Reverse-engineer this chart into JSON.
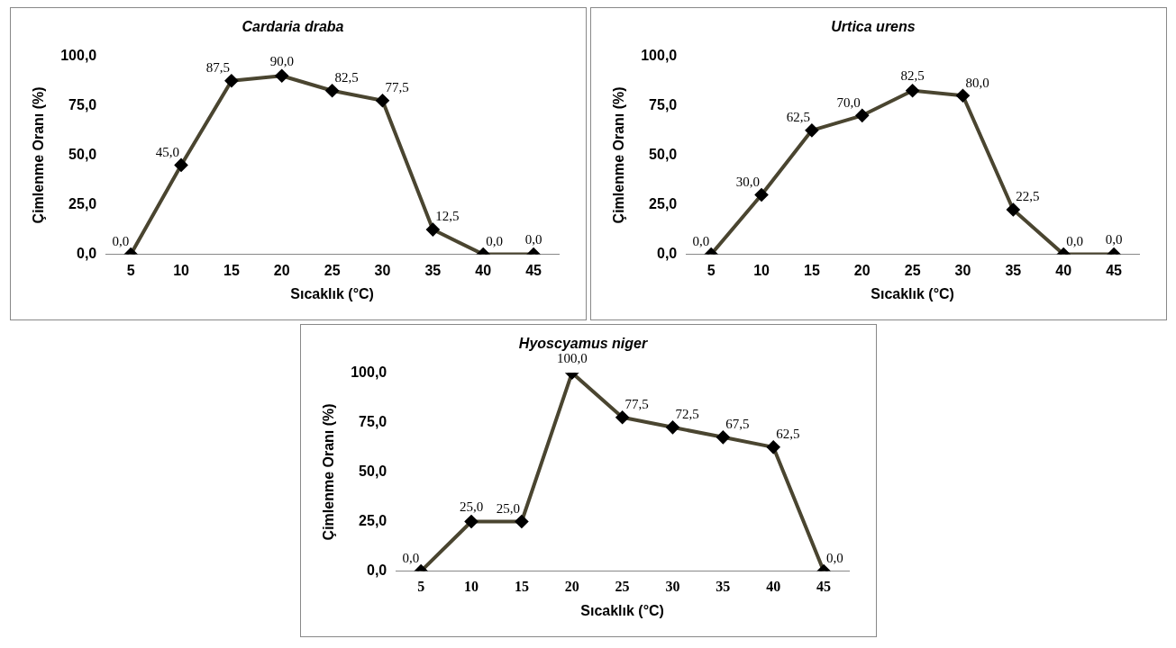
{
  "chart_data": [
    {
      "type": "line",
      "title": "Cardaria draba",
      "xlabel": "Sıcaklık (°C)",
      "ylabel": "Çimlenme Oranı (%)",
      "categories": [
        "5",
        "10",
        "15",
        "20",
        "25",
        "30",
        "35",
        "40",
        "45"
      ],
      "series": [
        {
          "color": "#4a4530",
          "values": [
            0,
            45,
            87.5,
            90,
            82.5,
            77.5,
            12.5,
            0,
            0
          ],
          "value_labels": [
            "0,0",
            "45,0",
            "87,5",
            "90,0",
            "82,5",
            "77,5",
            "12,5",
            "0,0",
            "0,0"
          ]
        }
      ],
      "ylim": [
        0,
        100
      ],
      "yticks": [
        {
          "value": 0,
          "label": "0,0"
        },
        {
          "value": 25,
          "label": "25,0"
        },
        {
          "value": 50,
          "label": "50,0"
        },
        {
          "value": 75,
          "label": "75,0"
        },
        {
          "value": 100,
          "label": "100,0"
        }
      ],
      "grid": false,
      "legend": false,
      "marker": "diamond",
      "line_style": "solid"
    },
    {
      "type": "line",
      "title": "Urtica urens",
      "xlabel": "Sıcaklık (°C)",
      "ylabel": "Çimlenme Oranı (%)",
      "categories": [
        "5",
        "10",
        "15",
        "20",
        "25",
        "30",
        "35",
        "40",
        "45"
      ],
      "series": [
        {
          "color": "#4a4530",
          "values": [
            0,
            30,
            62.5,
            70,
            82.5,
            80,
            22.5,
            0,
            0
          ],
          "value_labels": [
            "0,0",
            "30,0",
            "62,5",
            "70,0",
            "82,5",
            "80,0",
            "22,5",
            "0,0",
            "0,0"
          ]
        }
      ],
      "ylim": [
        0,
        100
      ],
      "yticks": [
        {
          "value": 0,
          "label": "0,0"
        },
        {
          "value": 25,
          "label": "25,0"
        },
        {
          "value": 50,
          "label": "50,0"
        },
        {
          "value": 75,
          "label": "75,0"
        },
        {
          "value": 100,
          "label": "100,0"
        }
      ],
      "grid": false,
      "legend": false,
      "marker": "diamond",
      "line_style": "solid"
    },
    {
      "type": "line",
      "title": "Hyoscyamus niger",
      "xlabel": "Sıcaklık (°C)",
      "ylabel": "Çimlenme Oranı (%)",
      "categories": [
        "5",
        "10",
        "15",
        "20",
        "25",
        "30",
        "35",
        "40",
        "45"
      ],
      "series": [
        {
          "color": "#4a4530",
          "values": [
            0,
            25,
            25,
            100,
            77.5,
            72.5,
            67.5,
            62.5,
            0
          ],
          "value_labels": [
            "0,0",
            "25,0",
            "25,0",
            "100,0",
            "77,5",
            "72,5",
            "67,5",
            "62,5",
            "0,0"
          ]
        }
      ],
      "ylim": [
        0,
        100
      ],
      "yticks": [
        {
          "value": 0,
          "label": "0,0"
        },
        {
          "value": 25,
          "label": "25,0"
        },
        {
          "value": 50,
          "label": "50,0"
        },
        {
          "value": 75,
          "label": "75,0"
        },
        {
          "value": 100,
          "label": "100,0"
        }
      ],
      "grid": false,
      "legend": false,
      "marker": "diamond",
      "line_style": "solid"
    }
  ]
}
